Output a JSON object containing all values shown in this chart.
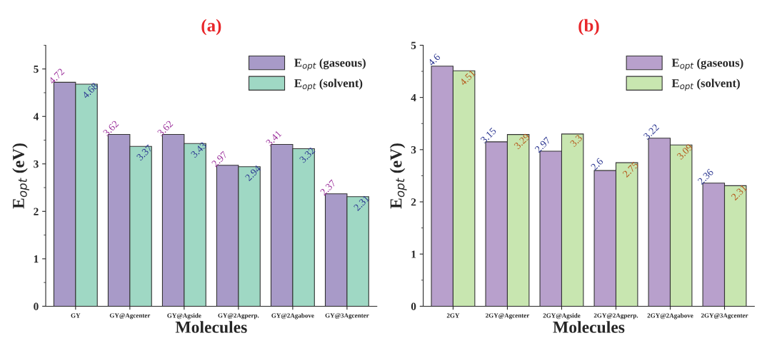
{
  "chart_data": [
    {
      "type": "bar",
      "title": "(a)",
      "xlabel": "Molecules",
      "ylabel": "E$_{opt}$ (eV)",
      "categories": [
        "GY",
        "GY@Agcenter",
        "GY@Agside",
        "GY@2Agperp.",
        "GY@2Agabove",
        "GY@3Agcenter"
      ],
      "series": [
        {
          "name": "E$_{opt}$ (gaseous)",
          "color": "#a89ac8",
          "values": [
            4.72,
            3.62,
            3.62,
            2.97,
            3.41,
            2.37
          ]
        },
        {
          "name": "E$_{opt}$ (solvent)",
          "color": "#9fd8c4",
          "values": [
            4.68,
            3.37,
            3.43,
            2.94,
            3.32,
            2.31
          ]
        }
      ],
      "ylim": [
        0,
        5.5
      ],
      "yticks": [
        0,
        1,
        2,
        3,
        4,
        5
      ],
      "data_labels": true,
      "legend": "top right",
      "grid": false
    },
    {
      "type": "bar",
      "title": "(b)",
      "xlabel": "Molecules",
      "ylabel": "E$_{opt}$ (eV)",
      "categories": [
        "2GY",
        "2GY@Agcenter",
        "2GY@Agside",
        "2GY@2Agperp.",
        "2GY@2Agabove",
        "2GY@3Agcenter"
      ],
      "series": [
        {
          "name": "E$_{opt}$ (gaseous)",
          "color": "#b8a0cc",
          "values": [
            4.6,
            3.15,
            2.97,
            2.6,
            3.22,
            2.36
          ]
        },
        {
          "name": "E$_{opt}$ (solvent)",
          "color": "#c8e6b0",
          "values": [
            4.51,
            3.29,
            3.3,
            2.75,
            3.09,
            2.31
          ]
        }
      ],
      "ylim": [
        0,
        5
      ],
      "yticks": [
        0,
        1,
        2,
        3,
        4,
        5
      ],
      "data_labels": true,
      "legend": "top right",
      "grid": false
    }
  ]
}
